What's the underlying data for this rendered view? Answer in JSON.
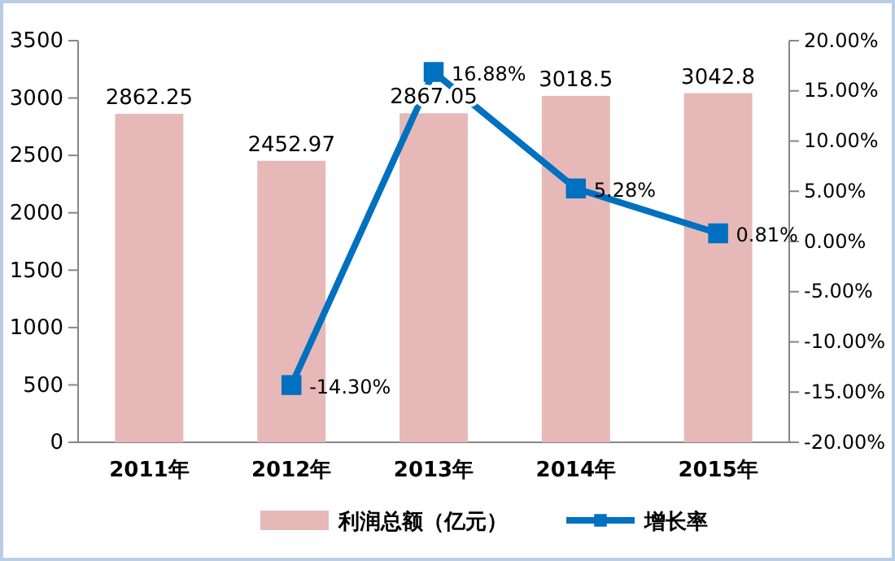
{
  "chart_data": {
    "type": "bar",
    "categories": [
      "2011年",
      "2012年",
      "2013年",
      "2014年",
      "2015年"
    ],
    "series": [
      {
        "name": "利润总额（亿元）",
        "color": "#e6b9b8",
        "values": [
          2862.25,
          2452.97,
          2867.05,
          3018.5,
          3042.8
        ],
        "value_labels": [
          "2862.25",
          "2452.97",
          "2867.05",
          "3018.5",
          "3042.8"
        ]
      },
      {
        "name": "增长率",
        "type": "line",
        "axis": "y2",
        "color": "#0070c0",
        "values": [
          null,
          -14.3,
          16.88,
          5.28,
          0.81
        ],
        "value_labels": [
          null,
          "-14.30%",
          "16.88%",
          "5.28%",
          "0.81%"
        ]
      }
    ],
    "ylim": [
      0,
      3500
    ],
    "yticks": [
      0,
      500,
      1000,
      1500,
      2000,
      2500,
      3000,
      3500
    ],
    "y2lim": [
      -20,
      20
    ],
    "y2ticks": [
      {
        "value": -20,
        "label": "-20.00%"
      },
      {
        "value": -15,
        "label": "-15.00%"
      },
      {
        "value": -10,
        "label": "-10.00%"
      },
      {
        "value": -5,
        "label": "-5.00%"
      },
      {
        "value": 0,
        "label": "0.00%"
      },
      {
        "value": 5,
        "label": "5.00%"
      },
      {
        "value": 10,
        "label": "10.00%"
      },
      {
        "value": 15,
        "label": "15.00%"
      },
      {
        "value": 20,
        "label": "20.00%"
      }
    ],
    "marker": "square",
    "legend": "bottom"
  }
}
